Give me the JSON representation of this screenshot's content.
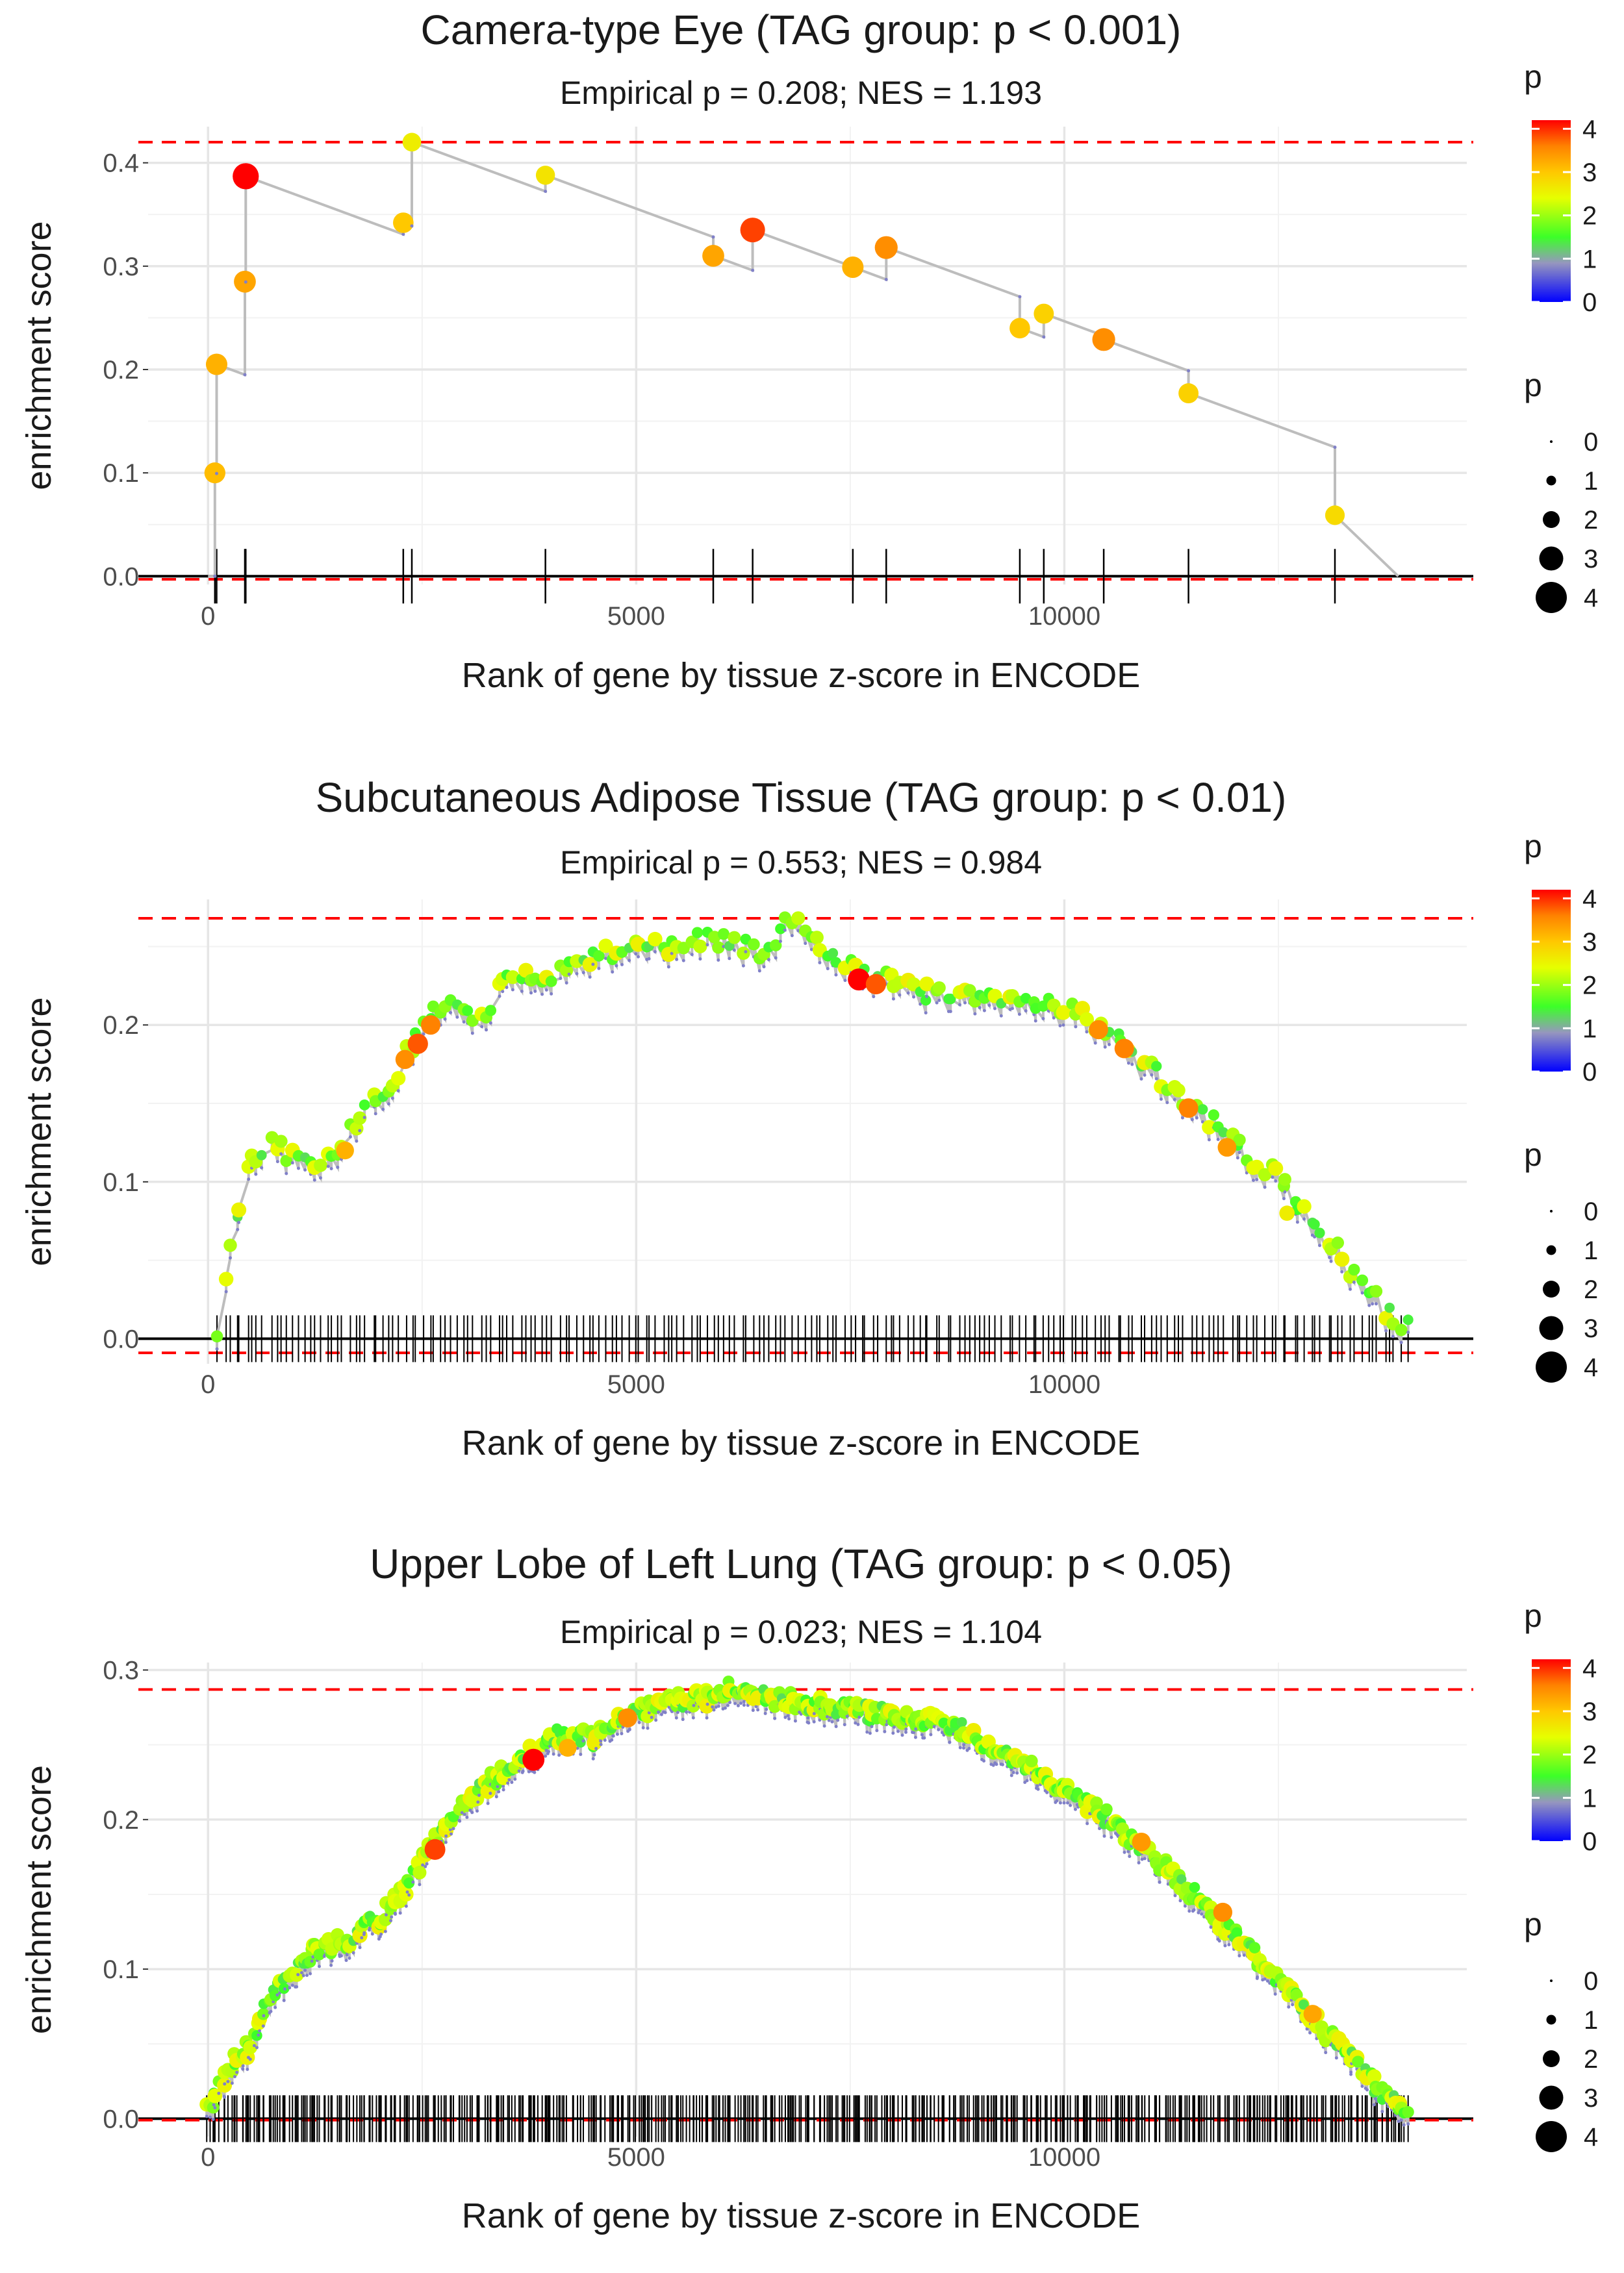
{
  "chart_data": [
    {
      "type": "line",
      "title": "Camera-type Eye (TAG group: p < 0.001)",
      "subtitle": "Empirical p = 0.208; NES = 1.193",
      "xlabel": "Rank of gene by tissue z-score in ENCODE",
      "ylabel": "enrichment score",
      "xlim": [
        -700,
        14700
      ],
      "ylim": [
        -0.008,
        0.435
      ],
      "xticks": [
        0,
        5000,
        10000
      ],
      "xtick_labels": [
        "0",
        "5000",
        "10000"
      ],
      "yticks": [
        0,
        0.1,
        0.2,
        0.3,
        0.4
      ],
      "ytick_labels": [
        "0.0",
        "0.1",
        "0.2",
        "0.3",
        "0.4"
      ],
      "ref_lines": [
        0.42,
        -0.003
      ],
      "n_genes": 14000,
      "points": [
        {
          "x": 80,
          "y": 0.1,
          "p": 3.1
        },
        {
          "x": 100,
          "y": 0.205,
          "p": 3.2
        },
        {
          "x": 430,
          "y": 0.285,
          "p": 3.3
        },
        {
          "x": 440,
          "y": 0.387,
          "p": 4.2
        },
        {
          "x": 2280,
          "y": 0.342,
          "p": 3.0
        },
        {
          "x": 2380,
          "y": 0.42,
          "p": 2.6
        },
        {
          "x": 3940,
          "y": 0.388,
          "p": 2.7
        },
        {
          "x": 5900,
          "y": 0.31,
          "p": 3.3
        },
        {
          "x": 6360,
          "y": 0.335,
          "p": 3.9
        },
        {
          "x": 7530,
          "y": 0.299,
          "p": 3.2
        },
        {
          "x": 7920,
          "y": 0.318,
          "p": 3.5
        },
        {
          "x": 9480,
          "y": 0.24,
          "p": 3.0
        },
        {
          "x": 9760,
          "y": 0.254,
          "p": 2.9
        },
        {
          "x": 10460,
          "y": 0.229,
          "p": 3.5
        },
        {
          "x": 11450,
          "y": 0.177,
          "p": 2.9
        },
        {
          "x": 13160,
          "y": 0.059,
          "p": 2.8
        }
      ],
      "legend": {
        "color_title": "p",
        "color_ticks": [
          "0",
          "1",
          "2",
          "3",
          "4"
        ],
        "size_title": "p",
        "size_labels": [
          "0",
          "1",
          "2",
          "3",
          "4"
        ]
      }
    },
    {
      "type": "line",
      "title": "Subcutaneous Adipose Tissue (TAG group: p < 0.01)",
      "subtitle": "Empirical p = 0.553; NES = 0.984",
      "xlabel": "Rank of gene by tissue z-score in ENCODE",
      "ylabel": "enrichment score",
      "xlim": [
        -700,
        14700
      ],
      "ylim": [
        -0.016,
        0.28
      ],
      "xticks": [
        0,
        5000,
        10000
      ],
      "xtick_labels": [
        "0",
        "5000",
        "10000"
      ],
      "yticks": [
        0,
        0.1,
        0.2
      ],
      "ytick_labels": [
        "0.0",
        "0.1",
        "0.2"
      ],
      "ref_lines": [
        0.268,
        -0.009
      ],
      "n_genes": 14000,
      "hits": 210,
      "seed": 7,
      "curve": [
        [
          120,
          0.0
        ],
        [
          230,
          0.04
        ],
        [
          350,
          0.08
        ],
        [
          500,
          0.11
        ],
        [
          700,
          0.12
        ],
        [
          850,
          0.118
        ],
        [
          1200,
          0.103
        ],
        [
          1500,
          0.115
        ],
        [
          1800,
          0.14
        ],
        [
          2100,
          0.155
        ],
        [
          2400,
          0.185
        ],
        [
          2700,
          0.21
        ],
        [
          3000,
          0.205
        ],
        [
          3200,
          0.198
        ],
        [
          3400,
          0.22
        ],
        [
          3700,
          0.228
        ],
        [
          4100,
          0.23
        ],
        [
          4500,
          0.24
        ],
        [
          5000,
          0.248
        ],
        [
          5400,
          0.245
        ],
        [
          5800,
          0.25
        ],
        [
          6100,
          0.25
        ],
        [
          6500,
          0.24
        ],
        [
          6850,
          0.268
        ],
        [
          7100,
          0.25
        ],
        [
          7500,
          0.235
        ],
        [
          7800,
          0.226
        ],
        [
          8200,
          0.22
        ],
        [
          8600,
          0.214
        ],
        [
          9000,
          0.212
        ],
        [
          9500,
          0.212
        ],
        [
          10000,
          0.209
        ],
        [
          10300,
          0.2
        ],
        [
          10700,
          0.183
        ],
        [
          11000,
          0.168
        ],
        [
          11500,
          0.145
        ],
        [
          12000,
          0.12
        ],
        [
          12500,
          0.098
        ],
        [
          13000,
          0.065
        ],
        [
          13500,
          0.03
        ],
        [
          13800,
          0.01
        ],
        [
          14000,
          0.003
        ]
      ],
      "hot": [
        [
          7600,
          0.229,
          4.2
        ],
        [
          7800,
          0.226,
          3.8
        ],
        [
          10400,
          0.197,
          3.5
        ],
        [
          10700,
          0.185,
          3.6
        ],
        [
          2450,
          0.188,
          3.8
        ],
        [
          2600,
          0.2,
          3.6
        ],
        [
          2300,
          0.178,
          3.5
        ],
        [
          1600,
          0.12,
          3.2
        ],
        [
          11450,
          0.147,
          3.6
        ],
        [
          11900,
          0.122,
          3.4
        ],
        [
          12600,
          0.08,
          2.6
        ]
      ],
      "legend": {
        "color_title": "p",
        "color_ticks": [
          "0",
          "1",
          "2",
          "3",
          "4"
        ],
        "size_title": "p",
        "size_labels": [
          "0",
          "1",
          "2",
          "3",
          "4"
        ]
      }
    },
    {
      "type": "line",
      "title": "Upper Lobe of Left Lung (TAG group: p < 0.05)",
      "subtitle": "Empirical p = 0.023; NES = 1.104",
      "xlabel": "Rank of gene by tissue z-score in ENCODE",
      "ylabel": "enrichment score",
      "xlim": [
        -700,
        14700
      ],
      "ylim": [
        -0.012,
        0.305
      ],
      "xticks": [
        0,
        5000,
        10000
      ],
      "xtick_labels": [
        "0",
        "5000",
        "10000"
      ],
      "yticks": [
        0,
        0.1,
        0.2,
        0.3
      ],
      "ytick_labels": [
        "0.0",
        "0.1",
        "0.2",
        "0.3"
      ],
      "ref_lines": [
        0.287,
        -0.001
      ],
      "n_genes": 14000,
      "hits": 520,
      "seed": 13,
      "curve": [
        [
          0,
          0.0
        ],
        [
          150,
          0.02
        ],
        [
          300,
          0.035
        ],
        [
          500,
          0.045
        ],
        [
          700,
          0.075
        ],
        [
          900,
          0.09
        ],
        [
          1200,
          0.107
        ],
        [
          1600,
          0.115
        ],
        [
          2000,
          0.13
        ],
        [
          2300,
          0.148
        ],
        [
          2600,
          0.178
        ],
        [
          2900,
          0.2
        ],
        [
          3300,
          0.222
        ],
        [
          3700,
          0.237
        ],
        [
          4100,
          0.252
        ],
        [
          4500,
          0.25
        ],
        [
          4900,
          0.265
        ],
        [
          5300,
          0.274
        ],
        [
          5800,
          0.277
        ],
        [
          6200,
          0.285
        ],
        [
          6700,
          0.276
        ],
        [
          7200,
          0.272
        ],
        [
          7700,
          0.268
        ],
        [
          8200,
          0.263
        ],
        [
          8700,
          0.26
        ],
        [
          9200,
          0.245
        ],
        [
          9700,
          0.228
        ],
        [
          10200,
          0.21
        ],
        [
          10700,
          0.188
        ],
        [
          11200,
          0.163
        ],
        [
          11700,
          0.135
        ],
        [
          12200,
          0.107
        ],
        [
          12700,
          0.075
        ],
        [
          13200,
          0.045
        ],
        [
          13600,
          0.02
        ],
        [
          14000,
          0.0
        ]
      ],
      "hot": [
        [
          3800,
          0.24,
          4.2
        ],
        [
          2650,
          0.18,
          3.9
        ],
        [
          4900,
          0.268,
          3.5
        ],
        [
          4200,
          0.248,
          3.2
        ],
        [
          10900,
          0.185,
          3.4
        ],
        [
          11850,
          0.138,
          3.5
        ],
        [
          12900,
          0.07,
          3.3
        ]
      ],
      "legend": {
        "color_title": "p",
        "color_ticks": [
          "0",
          "1",
          "2",
          "3",
          "4"
        ],
        "size_title": "p",
        "size_labels": [
          "0",
          "1",
          "2",
          "3",
          "4"
        ]
      }
    }
  ]
}
